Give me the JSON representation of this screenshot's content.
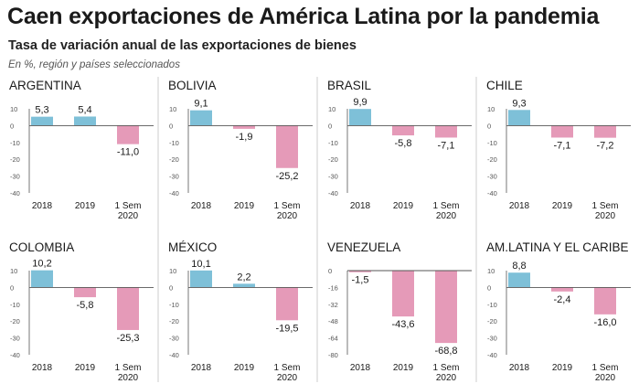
{
  "header": {
    "title": "Caen exportaciones de América Latina por la pandemia",
    "subtitle": "Tasa de variación anual de las exportaciones de bienes",
    "note": "En %, región y países seleccionados"
  },
  "colors": {
    "positive": "#7ec0d8",
    "negative": "#e59ab8",
    "axis": "#555555",
    "divider": "#cccccc"
  },
  "chart_data": [
    {
      "type": "bar",
      "title": "ARGENTINA",
      "categories": [
        [
          "2018"
        ],
        [
          "2019"
        ],
        [
          "1 Sem",
          "2020"
        ]
      ],
      "values": [
        5.3,
        5.4,
        -11.0
      ],
      "labels": [
        "5,3",
        "5,4",
        "-11,0"
      ],
      "ylim": [
        -40,
        10
      ],
      "yticks": [
        10,
        0,
        -10,
        -20,
        -30,
        -40
      ]
    },
    {
      "type": "bar",
      "title": "BOLIVIA",
      "categories": [
        [
          "2018"
        ],
        [
          "2019"
        ],
        [
          "1 Sem",
          "2020"
        ]
      ],
      "values": [
        9.1,
        -1.9,
        -25.2
      ],
      "labels": [
        "9,1",
        "-1,9",
        "-25,2"
      ],
      "ylim": [
        -40,
        10
      ],
      "yticks": [
        10,
        0,
        -10,
        -20,
        -30,
        -40
      ]
    },
    {
      "type": "bar",
      "title": "BRASIL",
      "categories": [
        [
          "2018"
        ],
        [
          "2019"
        ],
        [
          "1 Sem",
          "2020"
        ]
      ],
      "values": [
        9.9,
        -5.8,
        -7.1
      ],
      "labels": [
        "9,9",
        "-5,8",
        "-7,1"
      ],
      "ylim": [
        -40,
        10
      ],
      "yticks": [
        10,
        0,
        -10,
        -20,
        -30,
        -40
      ]
    },
    {
      "type": "bar",
      "title": "CHILE",
      "categories": [
        [
          "2018"
        ],
        [
          "2019"
        ],
        [
          "1 Sem",
          "2020"
        ]
      ],
      "values": [
        9.3,
        -7.1,
        -7.2
      ],
      "labels": [
        "9,3",
        "-7,1",
        "-7,2"
      ],
      "ylim": [
        -40,
        10
      ],
      "yticks": [
        10,
        0,
        -10,
        -20,
        -30,
        -40
      ]
    },
    {
      "type": "bar",
      "title": "COLOMBIA",
      "categories": [
        [
          "2018"
        ],
        [
          "2019"
        ],
        [
          "1 Sem",
          "2020"
        ]
      ],
      "values": [
        10.2,
        -5.8,
        -25.3
      ],
      "labels": [
        "10,2",
        "-5,8",
        "-25,3"
      ],
      "ylim": [
        -40,
        10
      ],
      "yticks": [
        10,
        0,
        -10,
        -20,
        -30,
        -40
      ]
    },
    {
      "type": "bar",
      "title": "MÉXICO",
      "categories": [
        [
          "2018"
        ],
        [
          "2019"
        ],
        [
          "1 Sem",
          "2020"
        ]
      ],
      "values": [
        10.1,
        2.2,
        -19.5
      ],
      "labels": [
        "10,1",
        "2,2",
        "-19,5"
      ],
      "ylim": [
        -40,
        10
      ],
      "yticks": [
        10,
        0,
        -10,
        -20,
        -30,
        -40
      ]
    },
    {
      "type": "bar",
      "title": "VENEZUELA",
      "categories": [
        [
          "2018"
        ],
        [
          "2019"
        ],
        [
          "1 Sem",
          "2020"
        ]
      ],
      "values": [
        -1.5,
        -43.6,
        -68.8
      ],
      "labels": [
        "-1,5",
        "-43,6",
        "-68,8"
      ],
      "ylim": [
        -80,
        0
      ],
      "yticks": [
        0,
        -16,
        -32,
        -48,
        -64,
        -80
      ]
    },
    {
      "type": "bar",
      "title": "AM.LATINA Y EL CARIBE",
      "categories": [
        [
          "2018"
        ],
        [
          "2019"
        ],
        [
          "1 Sem",
          "2020"
        ]
      ],
      "values": [
        8.8,
        -2.4,
        -16.0
      ],
      "labels": [
        "8,8",
        "-2,4",
        "-16,0"
      ],
      "ylim": [
        -40,
        10
      ],
      "yticks": [
        10,
        0,
        -10,
        -20,
        -30,
        -40
      ]
    }
  ]
}
